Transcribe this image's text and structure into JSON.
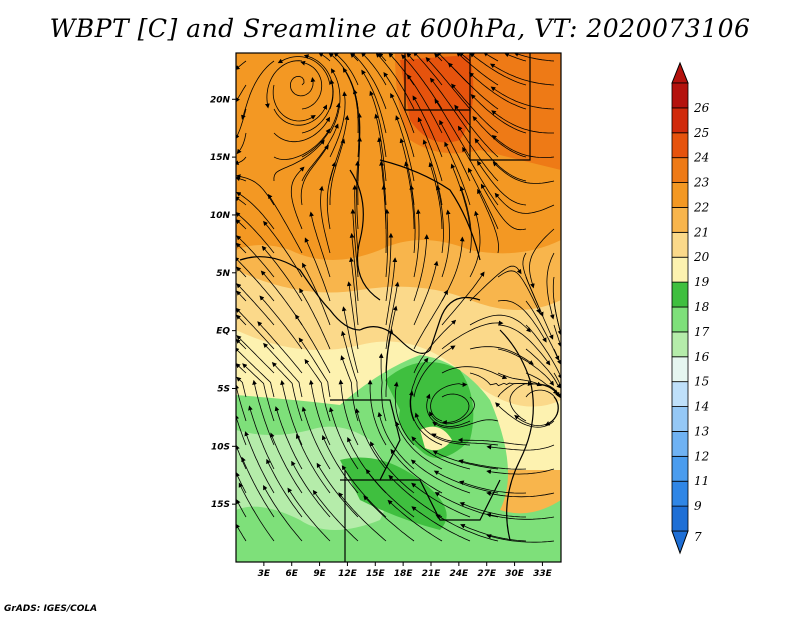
{
  "title": "WBPT [C] and Sreamline at 600hPa, VT: 2020073106",
  "credit": "GrADS: IGES/COLA",
  "chart_data": {
    "type": "heatmap",
    "variable": "WBPT",
    "units": "C",
    "level": "600hPa",
    "valid_time": "2020073106",
    "overlay": "streamlines",
    "lon_range": [
      0,
      35
    ],
    "lat_range": [
      -20,
      24
    ],
    "x_ticks": [
      "3E",
      "6E",
      "9E",
      "12E",
      "15E",
      "18E",
      "21E",
      "24E",
      "27E",
      "30E",
      "33E"
    ],
    "x_tick_values": [
      3,
      6,
      9,
      12,
      15,
      18,
      21,
      24,
      27,
      30,
      33
    ],
    "y_ticks": [
      "20N",
      "15N",
      "10N",
      "5N",
      "EQ",
      "5S",
      "10S",
      "15S"
    ],
    "y_tick_values": [
      20,
      15,
      10,
      5,
      0,
      -5,
      -10,
      -15
    ],
    "colorbar": {
      "labels": [
        "7",
        "9",
        "11",
        "12",
        "13",
        "14",
        "15",
        "16",
        "17",
        "18",
        "19",
        "20",
        "21",
        "22",
        "23",
        "24",
        "25",
        "26"
      ],
      "colors": [
        "#1e6fd6",
        "#2f86e6",
        "#4a9cee",
        "#6fb2f3",
        "#95c8f6",
        "#bfe0fa",
        "#e6f6f0",
        "#b5ecaa",
        "#7ee07a",
        "#3fbf3f",
        "#fdf2b0",
        "#fbd98a",
        "#f8b54c",
        "#f39823",
        "#ee7a16",
        "#e6530d",
        "#d02a0b",
        "#b4120d"
      ],
      "extend": "both"
    },
    "regions": [
      {
        "name": "upper-orange",
        "value": 21
      },
      {
        "name": "northeast-red",
        "value": 23
      },
      {
        "name": "central-light",
        "value": 19
      },
      {
        "name": "southern-green",
        "value": 17
      },
      {
        "name": "green-core",
        "value": 18
      }
    ]
  }
}
